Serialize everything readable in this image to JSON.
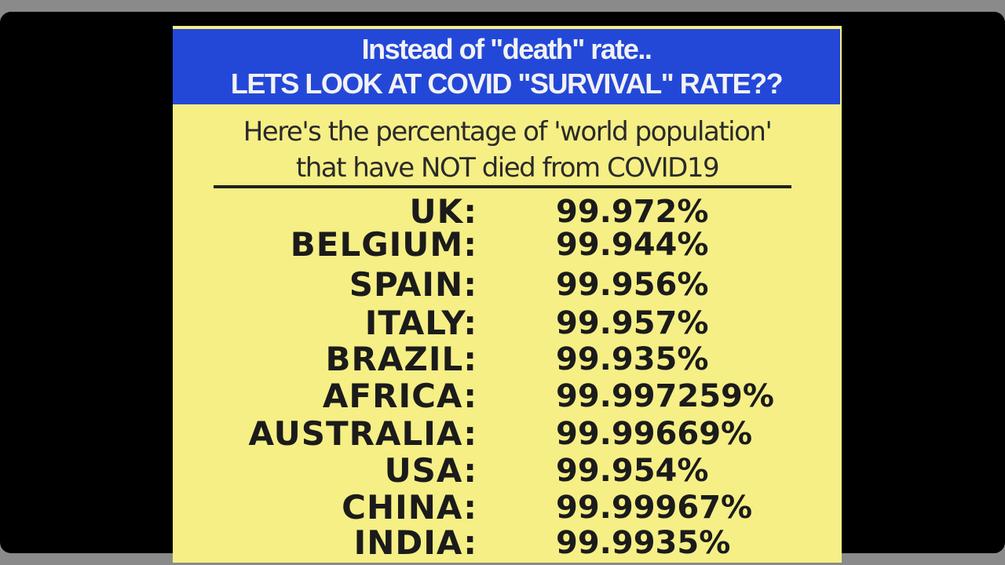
{
  "header": {
    "title": [
      "Instead of \"death\" rate..",
      "LETS LOOK AT COVID \"SURVIVAL\" RATE??"
    ]
  },
  "subtitle": [
    "Here's the percentage of 'world population'",
    "that have NOT died from COVID19"
  ],
  "table": {
    "rows": [
      [
        "UK:",
        "99.972%"
      ],
      [
        "BELGIUM:",
        "99.944%"
      ],
      [
        "SPAIN:",
        "99.956%"
      ],
      [
        "ITALY:",
        "99.957%"
      ],
      [
        "BRAZIL:",
        "99.935%"
      ],
      [
        "AFRICA:",
        "99.997259%"
      ],
      [
        "AUSTRALIA:",
        "99.99669%"
      ],
      [
        "USA:",
        "99.954%"
      ],
      [
        "CHINA:",
        "99.99967%"
      ],
      [
        "INDIA:",
        "99.9935%"
      ]
    ]
  }
}
